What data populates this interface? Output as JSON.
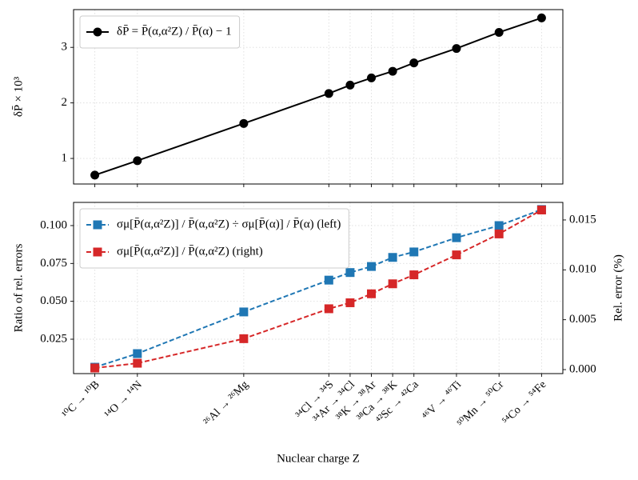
{
  "chart_data": [
    {
      "type": "line",
      "ylabel": "δP̄ × 10³",
      "x": [
        6,
        8,
        13,
        17,
        18,
        19,
        20,
        21,
        23,
        25,
        27
      ],
      "xlim": [
        5,
        28
      ],
      "xticks": [
        6,
        8,
        13,
        17,
        18,
        19,
        20,
        21,
        23,
        25,
        27
      ],
      "ylim": [
        0.54,
        3.68
      ],
      "yticks": [
        1,
        2,
        3
      ],
      "grid": true,
      "legend": "upper left",
      "series": [
        {
          "name": "δP̄ = P̄(α,α²Z) / P̄(α) − 1",
          "color": "#000000",
          "marker": "circle",
          "dash": "solid",
          "values": [
            0.7,
            0.96,
            1.63,
            2.17,
            2.32,
            2.45,
            2.57,
            2.72,
            2.98,
            3.27,
            3.53
          ]
        }
      ]
    },
    {
      "type": "line",
      "xlabel": "Nuclear charge Z",
      "ylabel": "Ratio of rel. errors",
      "y2label": "Rel. error (%)",
      "x": [
        6,
        8,
        13,
        17,
        18,
        19,
        20,
        21,
        23,
        25,
        27
      ],
      "xlim": [
        5,
        28
      ],
      "xticks": [
        {
          "value": 6,
          "label": "¹⁰C → ¹⁰B"
        },
        {
          "value": 8,
          "label": "¹⁴O → ¹⁴N"
        },
        {
          "value": 13,
          "label": "²⁶Al → ²⁶Mg"
        },
        {
          "value": 17,
          "label": "³⁴Cl → ³⁴S"
        },
        {
          "value": 18,
          "label": "³⁴Ar → ³⁴Cl"
        },
        {
          "value": 19,
          "label": "³⁸K → ³⁸Ar"
        },
        {
          "value": 20,
          "label": "³⁸Ca → ³⁸K"
        },
        {
          "value": 21,
          "label": "⁴²Sc → ⁴²Ca"
        },
        {
          "value": 23,
          "label": "⁴⁶V → ⁴⁶Ti"
        },
        {
          "value": 25,
          "label": "⁵⁰Mn → ⁵⁰Cr"
        },
        {
          "value": 27,
          "label": "⁵⁴Co → ⁵⁴Fe"
        }
      ],
      "ylim": [
        0.0023,
        0.1153
      ],
      "yticks": [
        0.025,
        {
          "value": 0.05,
          "label": "0.050"
        },
        0.075,
        {
          "value": 0.1,
          "label": "0.100"
        }
      ],
      "y2lim": [
        -0.0004,
        0.01676
      ],
      "y2ticks": [
        {
          "value": 0,
          "label": "0.000"
        },
        0.005,
        {
          "value": 0.01,
          "label": "0.010"
        },
        0.015
      ],
      "grid": true,
      "legend": "upper left",
      "series": [
        {
          "name": "σμ[P̄(α,α²Z)] / P̄(α,α²Z) ÷ σμ[P̄(α)] / P̄(α)  (left)",
          "color": "#1f77b4",
          "marker": "square",
          "dash": "dashed",
          "values": [
            0.0065,
            0.0155,
            0.043,
            0.064,
            0.069,
            0.073,
            0.079,
            0.0826,
            0.092,
            0.1,
            0.1106
          ]
        },
        {
          "name": "σμ[P̄(α,α²Z)] / P̄(α,α²Z)  (right)",
          "color": "#d62728",
          "marker": "square",
          "dash": "dashed",
          "axis": "y2",
          "values": [
            0.00016,
            0.00064,
            0.0031,
            0.0061,
            0.0067,
            0.0076,
            0.0086,
            0.0095,
            0.0115,
            0.0136,
            0.016
          ]
        }
      ]
    }
  ]
}
